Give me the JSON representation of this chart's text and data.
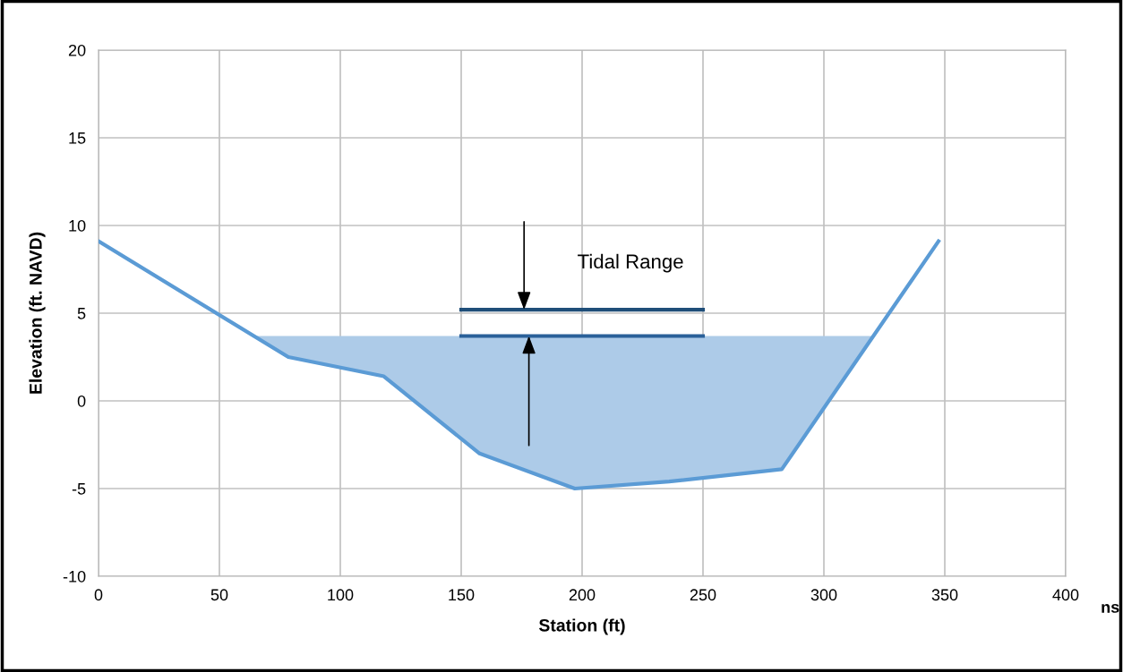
{
  "chart_data": {
    "type": "line",
    "xlabel": "Station (ft)",
    "ylabel": "Elevation (ft. NAVD)",
    "xlim": [
      0,
      400
    ],
    "xticks": [
      0,
      50,
      100,
      150,
      200,
      250,
      300,
      350,
      400
    ],
    "ylim": [
      -10,
      20
    ],
    "yticks": [
      -10,
      -5,
      0,
      5,
      10,
      15,
      20
    ],
    "grid": true,
    "line_style": "solid",
    "series": [
      {
        "type": "area",
        "color": "#adcbe8",
        "x": [
          64,
          78.5,
          118,
          157.6,
          197,
          236,
          282.6,
          320
        ],
        "values": [
          3.7,
          2.5,
          1.4,
          -3.0,
          -5.0,
          -4.6,
          -3.9,
          3.7
        ]
      },
      {
        "color": "#5b9bd5",
        "x": [
          0,
          78.5,
          118,
          157.6,
          197,
          236,
          282.6,
          347.4
        ],
        "values": [
          9.1,
          2.5,
          1.4,
          -3.0,
          -5.0,
          -4.6,
          -3.9,
          9.1
        ]
      },
      {
        "color": "#1f4e79",
        "x": [
          150,
          250
        ],
        "values": [
          5.2,
          5.2
        ]
      },
      {
        "color": "#2a6099",
        "x": [
          150,
          250
        ],
        "values": [
          3.7,
          3.7
        ]
      }
    ],
    "annotations": [
      "Tidal Range",
      "ns"
    ]
  }
}
